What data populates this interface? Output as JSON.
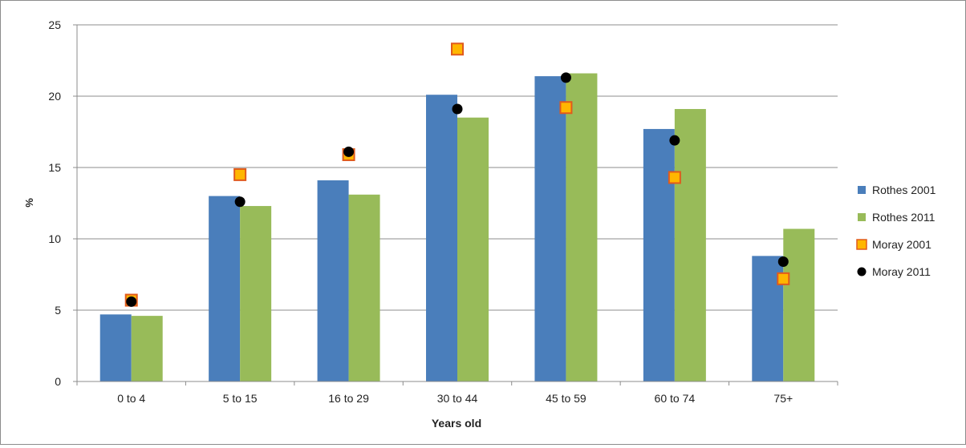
{
  "chart_data": {
    "type": "bar",
    "categories": [
      "0 to 4",
      "5 to 15",
      "16 to 29",
      "30 to 44",
      "45 to 59",
      "60 to 74",
      "75+"
    ],
    "xlabel": "Years old",
    "ylabel": "%",
    "ylim": [
      0,
      25
    ],
    "yticks": [
      0,
      5,
      10,
      15,
      20,
      25
    ],
    "grid": true,
    "legend_position": "right",
    "series": [
      {
        "name": "Rothes 2001",
        "kind": "bar",
        "color": "#4a7ebb",
        "values": [
          4.7,
          13.0,
          14.1,
          20.1,
          21.4,
          17.7,
          8.8
        ]
      },
      {
        "name": "Rothes 2011",
        "kind": "bar",
        "color": "#98bb59",
        "values": [
          4.6,
          12.3,
          13.1,
          18.5,
          21.6,
          19.1,
          10.7
        ]
      },
      {
        "name": "Moray 2001",
        "kind": "marker",
        "marker": "square",
        "color": "#ffb600",
        "edge_color": "#e05a1c",
        "values": [
          5.7,
          14.5,
          15.9,
          23.3,
          19.2,
          14.3,
          7.2
        ]
      },
      {
        "name": "Moray 2011",
        "kind": "marker",
        "marker": "circle",
        "color": "#000000",
        "values": [
          5.6,
          12.6,
          16.1,
          19.1,
          21.3,
          16.9,
          8.4
        ]
      }
    ]
  }
}
